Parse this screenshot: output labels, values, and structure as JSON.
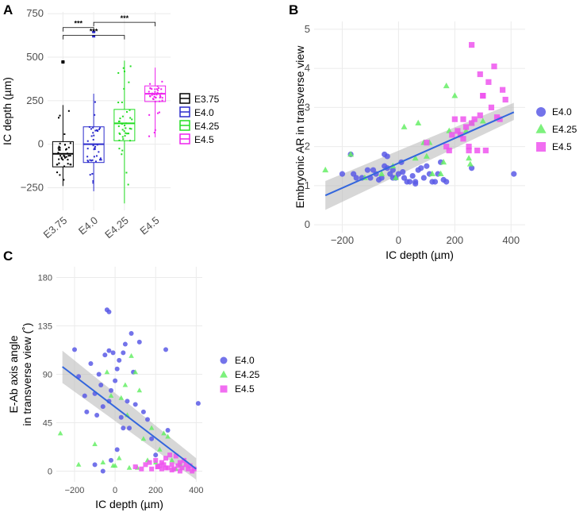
{
  "colors": {
    "E3.75": "#000000",
    "E4.0": "#2a2acc",
    "E4.25": "#22dd22",
    "E4.5": "#ee22ee",
    "pt_E4.0": "#5b5be6",
    "pt_E4.25": "#66ee66",
    "pt_E4.5": "#ee55ee",
    "fit": "#3366dd",
    "band": "#bdbdbd",
    "panel_bg": "#ffffff",
    "grid": "#ebebeb"
  },
  "chart_data": [
    {
      "panel": "A",
      "type": "box",
      "categories": [
        "E3.75",
        "E4.0",
        "E4.25",
        "E4.5"
      ],
      "ylabel": "IC depth (µm)",
      "xlabel": "",
      "ylim": [
        -380,
        760
      ],
      "yticks": [
        -250,
        0,
        250,
        500,
        750
      ],
      "yticklabels": [
        "−250",
        "0",
        "250",
        "500",
        "750"
      ],
      "boxes": [
        {
          "group": "E3.75",
          "min": -240,
          "q1": -130,
          "median": -55,
          "q3": 15,
          "max": 225,
          "outliers": [
            475,
            470
          ]
        },
        {
          "group": "E4.0",
          "min": -270,
          "q1": -105,
          "median": 0,
          "q3": 100,
          "max": 290,
          "outliers": [
            645,
            620
          ]
        },
        {
          "group": "E4.25",
          "min": -340,
          "q1": 20,
          "median": 120,
          "q3": 200,
          "max": 480,
          "outliers": []
        },
        {
          "group": "E4.5",
          "min": 40,
          "q1": 245,
          "median": 290,
          "q3": 335,
          "max": 440,
          "outliers": []
        }
      ],
      "significance": [
        {
          "from": "E3.75",
          "to": "E4.25",
          "label": "***",
          "y": 625
        },
        {
          "from": "E4.0",
          "to": "E4.5",
          "label": "***",
          "y": 700
        },
        {
          "from": "E3.75",
          "to": "E4.0",
          "label": "***",
          "y": 670
        }
      ],
      "legend": {
        "placement": "right",
        "entries": [
          "E3.75",
          "E4.0",
          "E4.25",
          "E4.5"
        ]
      }
    },
    {
      "panel": "B",
      "type": "scatter",
      "xlabel": "IC depth (µm)",
      "ylabel": "Embryonic AR in transverse view",
      "xlim": [
        -300,
        450
      ],
      "ylim": [
        -0.2,
        5.2
      ],
      "xticks": [
        -200,
        0,
        200,
        400
      ],
      "xticklabels": [
        "−200",
        "0",
        "200",
        "400"
      ],
      "yticks": [
        0,
        1,
        2,
        3,
        4,
        5
      ],
      "yticklabels": [
        "0",
        "1",
        "2",
        "3",
        "4",
        "5"
      ],
      "fit": {
        "x": [
          -260,
          410
        ],
        "y": [
          0.75,
          2.88
        ],
        "band_low": [
          0.38,
          2.68
        ],
        "band_high": [
          1.12,
          3.12
        ]
      },
      "series": [
        {
          "name": "E4.0",
          "marker": "circle",
          "x": [
            -200,
            -160,
            -150,
            -130,
            -100,
            -90,
            -80,
            -70,
            -50,
            -40,
            -40,
            -30,
            -20,
            -10,
            0,
            10,
            20,
            30,
            40,
            50,
            60,
            70,
            80,
            90,
            100,
            110,
            120,
            130,
            140,
            150,
            160,
            170,
            -60,
            -110,
            -50,
            -20,
            60,
            -170,
            410,
            260,
            15
          ],
          "y": [
            1.3,
            1.3,
            1.2,
            1.2,
            1.2,
            1.4,
            1.3,
            1.15,
            1.8,
            1.75,
            1.45,
            1.3,
            1.4,
            1.2,
            1.3,
            1.6,
            1.2,
            1.1,
            1.1,
            1.25,
            1.1,
            1.4,
            1.45,
            1.2,
            1.5,
            1.3,
            1.1,
            1.1,
            1.3,
            1.6,
            1.15,
            1.1,
            1.2,
            1.4,
            1.5,
            1.2,
            1.05,
            1.8,
            1.3,
            1.45,
            1.35
          ]
        },
        {
          "name": "E4.25",
          "marker": "triangle",
          "x": [
            -260,
            -170,
            -120,
            -60,
            -20,
            20,
            60,
            70,
            90,
            110,
            120,
            160,
            170,
            180,
            200,
            220,
            240,
            250,
            260,
            300,
            -10,
            100,
            150,
            255
          ],
          "y": [
            1.4,
            1.8,
            1.2,
            1.3,
            1.5,
            2.5,
            1.7,
            2.6,
            2.1,
            2.1,
            1.3,
            1.6,
            3.55,
            2.4,
            3.3,
            2.3,
            2.4,
            1.7,
            2.6,
            2.65,
            1.2,
            1.75,
            1.3,
            1.55
          ]
        },
        {
          "name": "E4.5",
          "marker": "square",
          "x": [
            100,
            170,
            180,
            190,
            200,
            210,
            220,
            230,
            240,
            250,
            260,
            260,
            270,
            280,
            290,
            290,
            300,
            300,
            310,
            320,
            330,
            340,
            350,
            360,
            370,
            380,
            250,
            230
          ],
          "y": [
            2.1,
            2.0,
            1.9,
            2.3,
            2.7,
            2.4,
            2.3,
            2.2,
            2.5,
            1.9,
            4.6,
            2.6,
            2.7,
            1.9,
            2.8,
            3.85,
            3.3,
            3.3,
            1.9,
            3.65,
            3.0,
            4.05,
            2.75,
            2.7,
            3.45,
            3.2,
            2.0,
            2.7
          ]
        }
      ],
      "legend": {
        "placement": "right",
        "entries": [
          "E4.0",
          "E4.25",
          "E4.5"
        ]
      }
    },
    {
      "panel": "C",
      "type": "scatter",
      "xlabel": "IC depth (µm)",
      "ylabel_lines": [
        "E-Ab  axis angle",
        "in transverse view (˚)"
      ],
      "xlim": [
        -290,
        430
      ],
      "ylim": [
        -10,
        190
      ],
      "xticks": [
        -200,
        0,
        200,
        400
      ],
      "xticklabels": [
        "−200",
        "0",
        "200",
        "400"
      ],
      "yticks": [
        0,
        45,
        90,
        135,
        180
      ],
      "yticklabels": [
        "0",
        "45",
        "90",
        "135",
        "180"
      ],
      "fit": {
        "x": [
          -260,
          400
        ],
        "y": [
          97,
          2
        ],
        "band_low": [
          82,
          -8
        ],
        "band_high": [
          112,
          12
        ]
      },
      "series": [
        {
          "name": "E4.0",
          "marker": "circle",
          "x": [
            -200,
            -180,
            -150,
            -140,
            -120,
            -100,
            -90,
            -80,
            -70,
            -60,
            -50,
            -40,
            -30,
            -30,
            -20,
            -10,
            0,
            10,
            20,
            40,
            50,
            60,
            70,
            80,
            90,
            100,
            120,
            140,
            160,
            180,
            200,
            250,
            260,
            410,
            -60,
            -30,
            -100,
            40,
            30,
            10,
            -20
          ],
          "y": [
            113,
            88,
            70,
            55,
            100,
            72,
            52,
            90,
            80,
            60,
            108,
            150,
            112,
            148,
            75,
            110,
            84,
            95,
            103,
            110,
            118,
            65,
            40,
            128,
            92,
            62,
            120,
            55,
            48,
            30,
            15,
            113,
            38,
            63,
            0,
            65,
            6,
            40,
            50,
            20,
            10
          ]
        },
        {
          "name": "E4.25",
          "marker": "triangle",
          "x": [
            -270,
            -180,
            -100,
            -60,
            -40,
            -20,
            0,
            20,
            30,
            50,
            60,
            80,
            100,
            120,
            140,
            160,
            180,
            200,
            220,
            240,
            260,
            280,
            300,
            320,
            -10,
            110,
            70
          ],
          "y": [
            35,
            6,
            25,
            8,
            92,
            70,
            5,
            12,
            68,
            80,
            52,
            107,
            92,
            75,
            30,
            10,
            40,
            8,
            20,
            35,
            32,
            10,
            2,
            6,
            5,
            3,
            3
          ]
        },
        {
          "name": "E4.5",
          "marker": "square",
          "x": [
            100,
            130,
            150,
            170,
            180,
            200,
            210,
            220,
            230,
            240,
            250,
            260,
            270,
            280,
            290,
            300,
            310,
            320,
            330,
            340,
            350,
            360,
            370,
            380,
            390,
            250,
            230,
            280,
            320,
            210
          ],
          "y": [
            4,
            2,
            6,
            8,
            2,
            10,
            4,
            5,
            8,
            6,
            12,
            3,
            15,
            6,
            2,
            14,
            5,
            8,
            3,
            10,
            6,
            2,
            5,
            0,
            2,
            3,
            2,
            1,
            0,
            4
          ]
        }
      ],
      "legend": {
        "placement": "right",
        "entries": [
          "E4.0",
          "E4.25",
          "E4.5"
        ]
      }
    }
  ],
  "labels": {
    "panelA": "A",
    "panelB": "B",
    "panelC": "C"
  }
}
